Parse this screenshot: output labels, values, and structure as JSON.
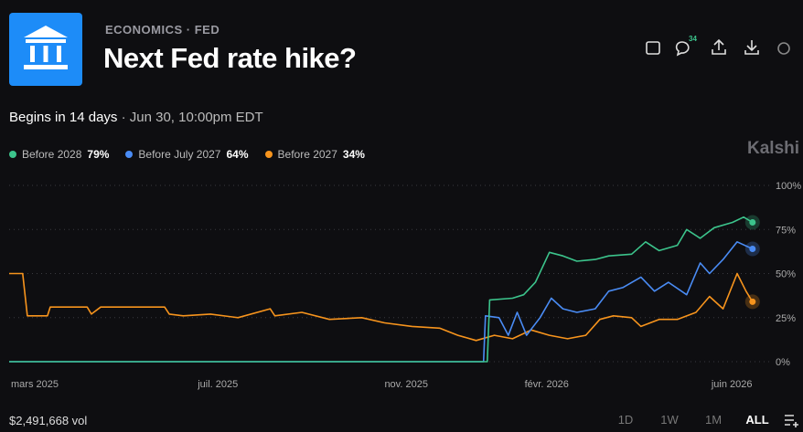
{
  "header": {
    "category": "ECONOMICS",
    "subcategory": "FED",
    "title": "Next Fed rate hike?",
    "comments": "34",
    "begins": "Begins in 14 days",
    "date": "Jun 30, 10:00pm EDT",
    "brand": "Kalshi"
  },
  "footer": {
    "volume": "$2,491,668 vol",
    "ranges": [
      "1D",
      "1W",
      "1M",
      "ALL"
    ],
    "active_range": "ALL"
  },
  "chart_data": {
    "type": "line",
    "xlim": [
      3,
      19.1
    ],
    "ylim": [
      0,
      100
    ],
    "xticks": [
      {
        "value": 3,
        "label": "mars 2025"
      },
      {
        "value": 7,
        "label": "juil. 2025"
      },
      {
        "value": 11,
        "label": "nov. 2025"
      },
      {
        "value": 14,
        "label": "févr. 2026"
      },
      {
        "value": 18,
        "label": "juin 2026"
      }
    ],
    "yticks": [
      {
        "value": 100,
        "label": "100%"
      },
      {
        "value": 75,
        "label": "75%"
      },
      {
        "value": 50,
        "label": "50%"
      },
      {
        "value": 25,
        "label": "25%"
      },
      {
        "value": 0,
        "label": "0%"
      }
    ],
    "grid": true,
    "series": [
      {
        "name": "Before 2028",
        "color": "#3cc48c",
        "legend_label": "79%",
        "x": [
          3.0,
          13.24,
          13.29,
          13.78,
          14.02,
          14.27,
          14.57,
          14.86,
          15.16,
          15.55,
          15.84,
          16.33,
          16.63,
          16.92,
          17.31,
          17.51,
          17.8,
          18.1,
          18.49,
          18.73,
          18.92
        ],
        "values": [
          0,
          0,
          35,
          36,
          38,
          45,
          62,
          60,
          57,
          58,
          60,
          61,
          68,
          63,
          66,
          75,
          70,
          76,
          79,
          82,
          79
        ]
      },
      {
        "name": "Before July 2027",
        "color": "#4a8cf5",
        "legend_label": "64%",
        "x": [
          3.0,
          13.16,
          13.2,
          13.49,
          13.69,
          13.88,
          14.08,
          14.37,
          14.61,
          14.86,
          15.16,
          15.55,
          15.84,
          16.14,
          16.53,
          16.82,
          17.12,
          17.51,
          17.8,
          18.0,
          18.29,
          18.59,
          18.92
        ],
        "values": [
          0,
          0,
          26,
          25,
          15,
          28,
          15,
          25,
          36,
          30,
          28,
          30,
          40,
          42,
          48,
          40,
          45,
          38,
          56,
          50,
          58,
          68,
          64
        ]
      },
      {
        "name": "Before 2027",
        "color": "#f7941d",
        "legend_label": "34%",
        "x": [
          3.0,
          3.29,
          3.39,
          3.82,
          3.88,
          4.67,
          4.76,
          4.96,
          6.33,
          6.43,
          6.73,
          7.31,
          7.9,
          8.59,
          8.69,
          9.27,
          9.86,
          10.55,
          11.04,
          11.63,
          12.22,
          12.61,
          13.0,
          13.39,
          13.78,
          14.18,
          14.57,
          14.96,
          15.35,
          15.65,
          15.94,
          16.33,
          16.53,
          16.92,
          17.31,
          17.71,
          18.0,
          18.29,
          18.59,
          18.78,
          18.92
        ],
        "values": [
          50,
          50,
          26,
          26,
          31,
          31,
          27,
          31,
          31,
          27,
          26,
          27,
          25,
          30,
          26,
          28,
          24,
          25,
          22,
          20,
          19,
          15,
          12,
          15,
          13,
          18,
          15,
          13,
          15,
          24,
          26,
          25,
          20,
          24,
          24,
          28,
          37,
          30,
          50,
          40,
          34
        ]
      }
    ]
  }
}
